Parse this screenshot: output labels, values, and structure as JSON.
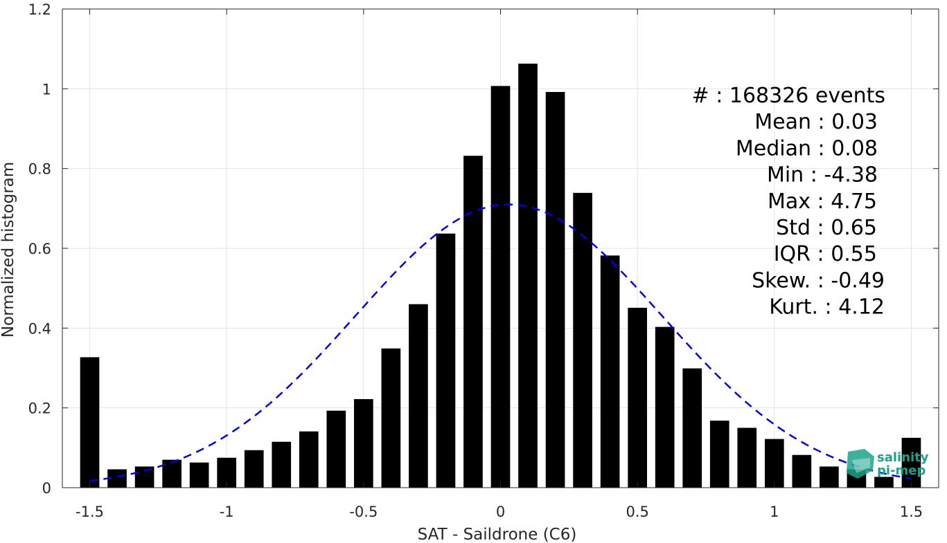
{
  "chart_data": {
    "type": "bar",
    "xlabel": "SAT - Saildrone (C6)",
    "ylabel": "Normalized histogram",
    "xlim": [
      -1.6,
      1.6
    ],
    "ylim": [
      0,
      1.2
    ],
    "x_ticks": [
      -1.5,
      -1,
      -0.5,
      0,
      0.5,
      1,
      1.5
    ],
    "x_tick_labels": [
      "-1.5",
      "-1",
      "-0.5",
      "0",
      "0.5",
      "1",
      "1.5"
    ],
    "y_ticks": [
      0,
      0.2,
      0.4,
      0.6,
      0.8,
      1,
      1.2
    ],
    "y_tick_labels": [
      "0",
      "0.2",
      "0.4",
      "0.6",
      "0.8",
      "1",
      "1.2"
    ],
    "grid": true,
    "bar_color": "#000000",
    "bin_width": 0.1,
    "x": [
      -1.5,
      -1.4,
      -1.3,
      -1.2,
      -1.1,
      -1.0,
      -0.9,
      -0.8,
      -0.7,
      -0.6,
      -0.5,
      -0.4,
      -0.3,
      -0.2,
      -0.1,
      0.0,
      0.1,
      0.2,
      0.3,
      0.4,
      0.5,
      0.6,
      0.7,
      0.8,
      0.9,
      1.0,
      1.1,
      1.2,
      1.3,
      1.4,
      1.5
    ],
    "values": [
      0.327,
      0.046,
      0.053,
      0.07,
      0.063,
      0.075,
      0.094,
      0.115,
      0.141,
      0.193,
      0.222,
      0.349,
      0.46,
      0.637,
      0.832,
      1.007,
      1.063,
      0.992,
      0.739,
      0.582,
      0.451,
      0.403,
      0.299,
      0.168,
      0.15,
      0.122,
      0.082,
      0.053,
      0.046,
      0.027,
      0.125
    ],
    "fit": {
      "type": "gaussian",
      "style": "dashed",
      "color": "#0000ee",
      "mean": 0.03,
      "std": 0.56,
      "peak": 0.71,
      "x_range": [
        -1.5,
        1.5
      ]
    },
    "stats": [
      {
        "label": "#  : 168326 events"
      },
      {
        "label": "Mean : 0.03"
      },
      {
        "label": "Median : 0.08"
      },
      {
        "label": "Min : -4.38"
      },
      {
        "label": "Max : 4.75"
      },
      {
        "label": "Std : 0.65"
      },
      {
        "label": "IQR : 0.55"
      },
      {
        "label": "Skew. : -0.49"
      },
      {
        "label": "Kurt. : 4.12"
      }
    ],
    "logo": {
      "line1": "salinity",
      "line2": "pi-mep",
      "color": "#1aa38a"
    }
  }
}
